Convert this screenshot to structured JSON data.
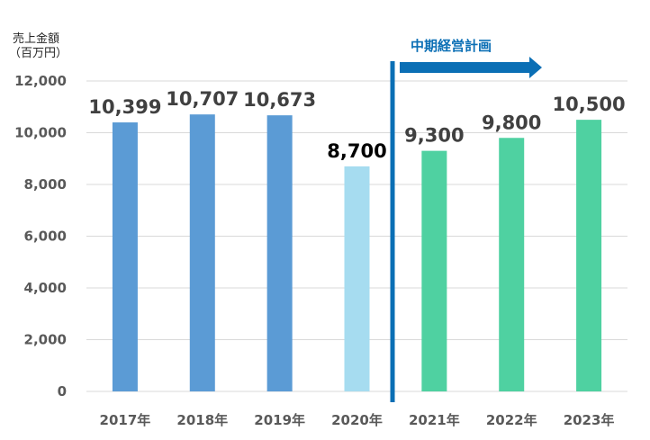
{
  "chart_data": {
    "type": "bar",
    "unit_label_line1": "売上金額",
    "unit_label_line2": "（百万円）",
    "categories": [
      "2017年",
      "2018年",
      "2019年",
      "2020年",
      "2021年",
      "2022年",
      "2023年"
    ],
    "values": [
      10399,
      10707,
      10673,
      8700,
      9300,
      9800,
      10500
    ],
    "value_labels": [
      "10,399",
      "10,707",
      "10,673",
      "8,700",
      "9,300",
      "9,800",
      "10,500"
    ],
    "yticks": [
      "0",
      "2,000",
      "4,000",
      "6,000",
      "8,000",
      "10,000",
      "12,000"
    ],
    "ylim": [
      0,
      12000
    ],
    "grid": true,
    "plan_annotation": "中期経営計画",
    "colors": {
      "actual": "#5b9bd5",
      "estimate_2020": "#a6dcf0",
      "plan": "#4fd1a1",
      "divider": "#0b6fb5",
      "grid": "#d9d9d9"
    }
  }
}
